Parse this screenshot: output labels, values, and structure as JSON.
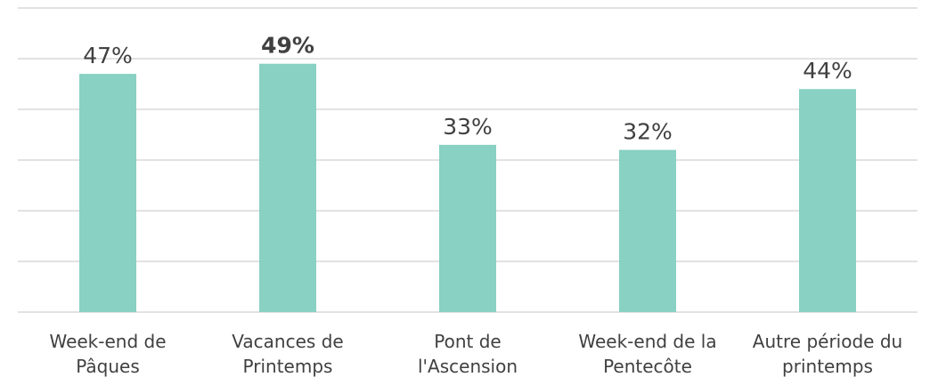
{
  "chart_data": {
    "type": "bar",
    "categories": [
      [
        "Week-end de",
        "Pâques"
      ],
      [
        "Vacances de",
        "Printemps"
      ],
      [
        "Pont de",
        "l'Ascension"
      ],
      [
        "Week-end de la",
        "Pentecôte"
      ],
      [
        "Autre période du",
        "printemps"
      ]
    ],
    "values": [
      47,
      49,
      33,
      32,
      44
    ],
    "value_labels": [
      "47%",
      "49%",
      "33%",
      "32%",
      "44%"
    ],
    "bold_label_index": 1,
    "color": "#88d1c3",
    "ylim": [
      0,
      60
    ],
    "yticks": [
      0,
      10,
      20,
      30,
      40,
      50,
      60
    ],
    "grid": true
  }
}
